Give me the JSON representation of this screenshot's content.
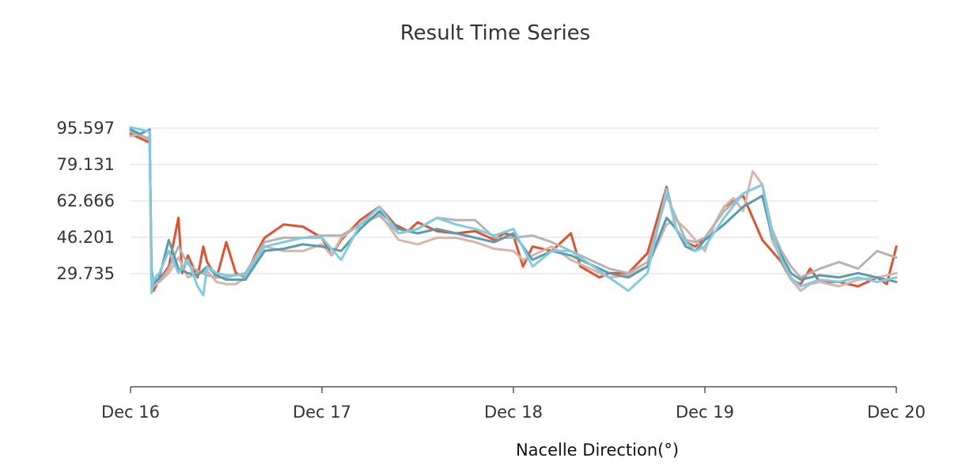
{
  "chart_data": {
    "type": "line",
    "title": "Result Time Series",
    "xlabel": "Nacelle Direction(°)",
    "ylabel": "",
    "x_ticks": [
      "Dec 16",
      "Dec 17",
      "Dec 18",
      "Dec 19",
      "Dec 20"
    ],
    "y_ticks": [
      "95.597",
      "79.131",
      "62.666",
      "46.201",
      "29.735"
    ],
    "y_tick_values": [
      95.597,
      79.131,
      62.666,
      46.201,
      29.735
    ],
    "ylim": [
      0,
      95.597
    ],
    "xlim": [
      0,
      4
    ],
    "grid": true,
    "legend": "none",
    "series": [
      {
        "color": "#e0522e",
        "x": [
          0,
          0.05,
          0.1,
          0.11,
          0.12,
          0.15,
          0.2,
          0.25,
          0.27,
          0.3,
          0.35,
          0.38,
          0.4,
          0.45,
          0.5,
          0.55,
          0.6,
          0.65,
          0.7,
          0.8,
          0.9,
          1.0,
          1.05,
          1.1,
          1.2,
          1.3,
          1.38,
          1.45,
          1.5,
          1.55,
          1.6,
          1.7,
          1.8,
          1.9,
          1.95,
          2.0,
          2.05,
          2.1,
          2.2,
          2.3,
          2.35,
          2.45,
          2.5,
          2.6,
          2.7,
          2.8,
          2.85,
          2.9,
          2.95,
          3.0,
          3.05,
          3.1,
          3.2,
          3.25,
          3.3,
          3.35,
          3.4,
          3.45,
          3.5,
          3.55,
          3.6,
          3.7,
          3.8,
          3.9,
          3.95,
          4.0
        ],
        "y": [
          93,
          91,
          89,
          32,
          22,
          27,
          33,
          55,
          30,
          38,
          28,
          42,
          35,
          28,
          44,
          30,
          28,
          38,
          46,
          52,
          51,
          46,
          38,
          45,
          54,
          60,
          52,
          49,
          53,
          51,
          49,
          48,
          49,
          45,
          48,
          47,
          33,
          42,
          40,
          48,
          33,
          28,
          30,
          30,
          39,
          69,
          50,
          44,
          42,
          46,
          52,
          60,
          65,
          55,
          45,
          40,
          35,
          27,
          25,
          32,
          26,
          26,
          24,
          28,
          25,
          42
        ]
      },
      {
        "color": "#d6b5ab",
        "x": [
          0,
          0.05,
          0.1,
          0.11,
          0.12,
          0.15,
          0.2,
          0.25,
          0.3,
          0.35,
          0.4,
          0.45,
          0.5,
          0.55,
          0.6,
          0.65,
          0.7,
          0.8,
          0.9,
          1.0,
          1.05,
          1.1,
          1.2,
          1.3,
          1.4,
          1.5,
          1.6,
          1.7,
          1.8,
          1.9,
          2.0,
          2.05,
          2.1,
          2.2,
          2.3,
          2.4,
          2.5,
          2.6,
          2.7,
          2.8,
          2.85,
          2.9,
          2.95,
          3.0,
          3.05,
          3.1,
          3.15,
          3.2,
          3.25,
          3.3,
          3.35,
          3.4,
          3.45,
          3.5,
          3.55,
          3.6,
          3.7,
          3.8,
          3.9,
          4.0
        ],
        "y": [
          92,
          93,
          90,
          22,
          24,
          26,
          30,
          37,
          28,
          30,
          31,
          26,
          25,
          25,
          28,
          35,
          42,
          40,
          40,
          43,
          38,
          46,
          52,
          57,
          45,
          43,
          46,
          46,
          44,
          41,
          40,
          36,
          38,
          42,
          36,
          32,
          28,
          29,
          33,
          52,
          54,
          50,
          45,
          40,
          52,
          60,
          64,
          58,
          76,
          70,
          45,
          36,
          27,
          22,
          25,
          26,
          24,
          27,
          28,
          30
        ]
      },
      {
        "color": "#b4b4b4",
        "x": [
          0,
          0.05,
          0.1,
          0.11,
          0.12,
          0.15,
          0.2,
          0.25,
          0.3,
          0.35,
          0.4,
          0.45,
          0.5,
          0.6,
          0.7,
          0.8,
          0.9,
          1.0,
          1.1,
          1.2,
          1.3,
          1.4,
          1.5,
          1.6,
          1.7,
          1.8,
          1.9,
          2.0,
          2.1,
          2.2,
          2.3,
          2.4,
          2.5,
          2.6,
          2.7,
          2.8,
          2.85,
          2.9,
          2.95,
          3.0,
          3.1,
          3.2,
          3.3,
          3.35,
          3.4,
          3.45,
          3.5,
          3.6,
          3.7,
          3.8,
          3.9,
          4.0
        ],
        "y": [
          94,
          92,
          91,
          23,
          28,
          26,
          32,
          42,
          34,
          31,
          29,
          28,
          28,
          30,
          44,
          46,
          46,
          47,
          47,
          52,
          56,
          48,
          50,
          55,
          54,
          54,
          46,
          46,
          47,
          44,
          40,
          36,
          32,
          30,
          35,
          65,
          55,
          45,
          44,
          46,
          58,
          66,
          70,
          50,
          40,
          33,
          28,
          32,
          35,
          32,
          40,
          37
        ]
      },
      {
        "color": "#5a9bb0",
        "x": [
          0,
          0.05,
          0.1,
          0.11,
          0.12,
          0.15,
          0.2,
          0.25,
          0.3,
          0.35,
          0.4,
          0.45,
          0.5,
          0.6,
          0.7,
          0.8,
          0.9,
          1.0,
          1.1,
          1.2,
          1.3,
          1.4,
          1.5,
          1.6,
          1.7,
          1.8,
          1.9,
          2.0,
          2.1,
          2.2,
          2.3,
          2.4,
          2.5,
          2.6,
          2.7,
          2.8,
          2.85,
          2.9,
          2.95,
          3.0,
          3.1,
          3.2,
          3.3,
          3.35,
          3.4,
          3.45,
          3.5,
          3.6,
          3.7,
          3.8,
          3.9,
          4.0
        ],
        "y": [
          95,
          93,
          95,
          22,
          25,
          28,
          45,
          32,
          30,
          29,
          33,
          29,
          27,
          27,
          40,
          41,
          43,
          42,
          40,
          50,
          58,
          50,
          48,
          50,
          48,
          46,
          44,
          48,
          36,
          40,
          38,
          34,
          30,
          28,
          33,
          55,
          50,
          42,
          40,
          45,
          52,
          60,
          65,
          47,
          38,
          30,
          27,
          29,
          28,
          30,
          28,
          26
        ]
      },
      {
        "color": "#7fcbe0",
        "x": [
          0,
          0.05,
          0.1,
          0.11,
          0.12,
          0.15,
          0.2,
          0.25,
          0.3,
          0.35,
          0.38,
          0.4,
          0.45,
          0.5,
          0.6,
          0.7,
          0.8,
          0.9,
          1.0,
          1.1,
          1.2,
          1.3,
          1.4,
          1.5,
          1.6,
          1.7,
          1.8,
          1.9,
          2.0,
          2.1,
          2.2,
          2.3,
          2.4,
          2.5,
          2.6,
          2.7,
          2.8,
          2.85,
          2.9,
          2.95,
          3.0,
          3.1,
          3.2,
          3.3,
          3.35,
          3.4,
          3.45,
          3.5,
          3.6,
          3.7,
          3.8,
          3.9,
          4.0
        ],
        "y": [
          96,
          95,
          94,
          21,
          27,
          30,
          40,
          30,
          36,
          24,
          20,
          33,
          30,
          29,
          29,
          42,
          44,
          46,
          46,
          36,
          52,
          60,
          48,
          50,
          55,
          52,
          50,
          47,
          50,
          33,
          40,
          40,
          34,
          28,
          22,
          30,
          68,
          50,
          44,
          40,
          42,
          55,
          66,
          70,
          48,
          36,
          28,
          24,
          27,
          26,
          28,
          26,
          28
        ]
      }
    ]
  }
}
